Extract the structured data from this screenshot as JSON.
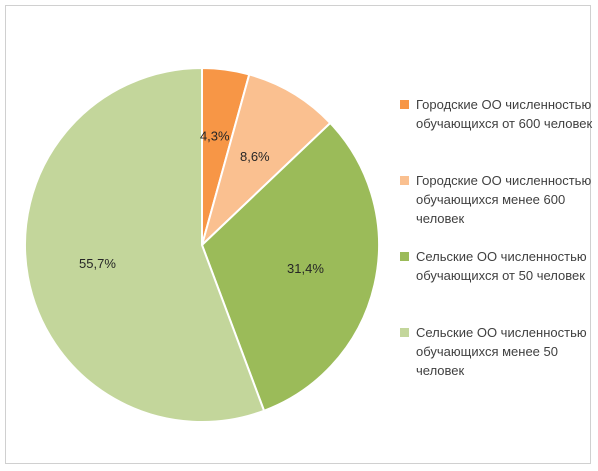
{
  "chart_data": {
    "type": "pie",
    "categories": [
      "Городские ОО численностью обучающихся от 600 человек",
      "Городские ОО численностью обучающихся менее 600 человек",
      "Сельские ОО численностью обучающихся от 50 человек",
      "Сельские ОО численностью обучающихся менее 50 человек"
    ],
    "values": [
      4.3,
      8.6,
      31.4,
      55.7
    ],
    "data_labels": [
      "4,3%",
      "8,6%",
      "31,4%",
      "55,7%"
    ],
    "colors": [
      "#f79646",
      "#fac090",
      "#9bbb59",
      "#c3d69b"
    ],
    "legend_position": "right"
  }
}
